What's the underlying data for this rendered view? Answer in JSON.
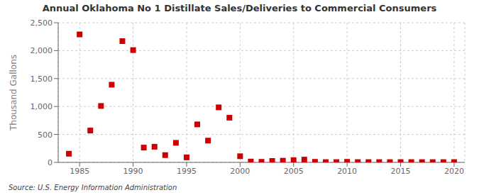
{
  "chart_data": {
    "type": "scatter",
    "title": "Annual Oklahoma No 1 Distillate Sales/Deliveries to Commercial Consumers",
    "ylabel": "Thousand Gallons",
    "annotation": "Source: U.S. Energy Information Administration",
    "x": [
      1984,
      1985,
      1986,
      1987,
      1988,
      1989,
      1990,
      1991,
      1992,
      1993,
      1994,
      1995,
      1996,
      1997,
      1998,
      1999,
      2000,
      2001,
      2002,
      2003,
      2004,
      2005,
      2006,
      2007,
      2008,
      2009,
      2010,
      2011,
      2012,
      2013,
      2014,
      2015,
      2016,
      2017,
      2018,
      2019,
      2020
    ],
    "values": [
      155,
      2290,
      570,
      1010,
      1390,
      2170,
      2010,
      265,
      280,
      130,
      350,
      90,
      680,
      390,
      985,
      800,
      110,
      15,
      10,
      25,
      30,
      40,
      50,
      10,
      5,
      5,
      10,
      5,
      5,
      5,
      5,
      5,
      5,
      5,
      5,
      5,
      5
    ],
    "color": "#cc0000",
    "marker": "square",
    "xlim": [
      1983,
      2021
    ],
    "xticks": [
      1985,
      1990,
      1995,
      2000,
      2005,
      2010,
      2015,
      2020
    ],
    "ylim": [
      0,
      2500
    ],
    "yticks": [
      0,
      500,
      {
        "value": 1000,
        "label": "1,000"
      },
      {
        "value": 1500,
        "label": "1,500"
      },
      {
        "value": 2000,
        "label": "2,000"
      },
      {
        "value": 2500,
        "label": "2,500"
      }
    ],
    "grid": true
  }
}
